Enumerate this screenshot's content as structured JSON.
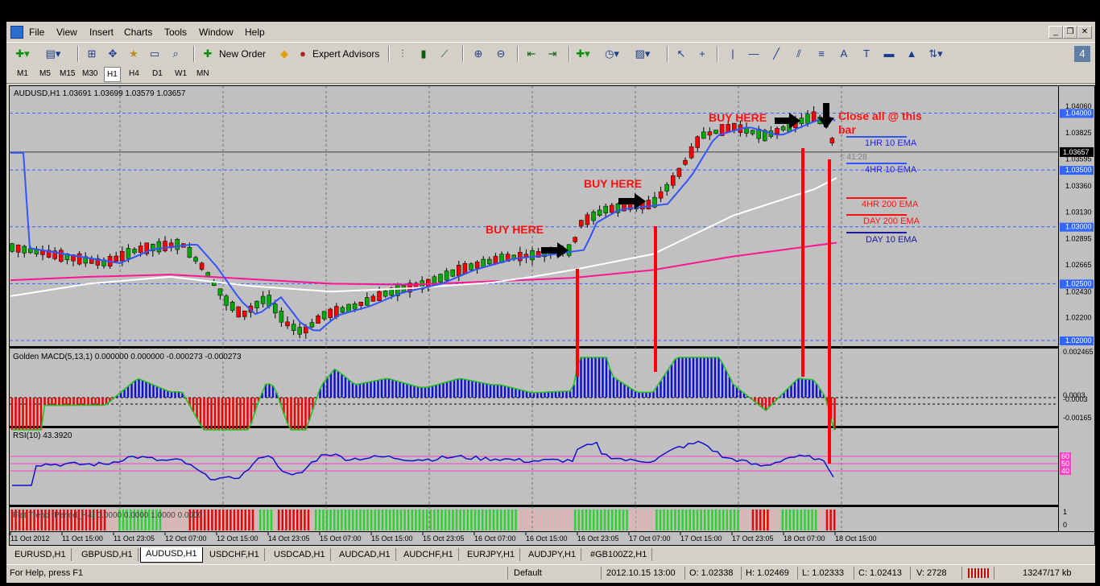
{
  "menu": [
    "File",
    "View",
    "Insert",
    "Charts",
    "Tools",
    "Window",
    "Help"
  ],
  "toolbar": {
    "new_order": "New Order",
    "expert_advisors": "Expert Advisors"
  },
  "timeframes": [
    "M1",
    "M5",
    "M15",
    "M30",
    "H1",
    "H4",
    "D1",
    "W1",
    "MN"
  ],
  "active_timeframe": "H1",
  "chart": {
    "header": "AUDUSD,H1  1.03691 1.03699 1.03579 1.03657",
    "price_labels": [
      "1.04060",
      "1.04000",
      "1.03825",
      "1.03595",
      "1.03500",
      "1.03360",
      "1.03130",
      "1.03000",
      "1.02895",
      "1.02665",
      "1.02500",
      "1.02430",
      "1.02200",
      "1.02000"
    ],
    "current_price": "1.03657",
    "countdown": "< 41:28",
    "annotations": {
      "buy1": "BUY HERE",
      "buy2": "BUY HERE",
      "buy3": "BUY HERE",
      "close": "Close all @ this",
      "close2": "bar"
    },
    "legend": [
      "1HR 10 EMA",
      "4HR 10 EMA",
      "4HR 200 EMA",
      "DAY 200 EMA",
      "DAY 10 EMA"
    ],
    "macd_header": "Golden MACD(5,13,1) 0.000000 0.000000 -0.000273 -0.000273",
    "macd_labels": [
      "0.002465",
      "0.0003",
      "-0.0003",
      "-0.00165"
    ],
    "rsi_header": "RSI(10) 43.3920",
    "rsi_labels": [
      "60",
      "50",
      "40"
    ],
    "flat_header": "Flat Trend (Period_H4) 0.0000 0.0000 1.0000 0.0000",
    "flat_labels": [
      "1",
      "0"
    ],
    "time_labels": [
      "11 Oct 2012",
      "11 Oct 15:00",
      "11 Oct 23:05",
      "12 Oct 07:00",
      "12 Oct 15:00",
      "14 Oct 23:05",
      "15 Oct 07:00",
      "15 Oct 15:00",
      "15 Oct 23:05",
      "16 Oct 07:00",
      "16 Oct 15:00",
      "16 Oct 23:05",
      "17 Oct 07:00",
      "17 Oct 15:00",
      "17 Oct 23:05",
      "18 Oct 07:00",
      "18 Oct 15:00"
    ]
  },
  "tabs": [
    "EURUSD,H1",
    "GBPUSD,H1",
    "AUDUSD,H1",
    "USDCHF,H1",
    "USDCAD,H1",
    "AUDCAD,H1",
    "AUDCHF,H1",
    "EURJPY,H1",
    "AUDJPY,H1",
    "#GB100Z2,H1"
  ],
  "active_tab": "AUDUSD,H1",
  "status": {
    "help": "For Help, press F1",
    "profile": "Default",
    "time": "2012.10.15 13:00",
    "open": "O: 1.02338",
    "high": "H: 1.02469",
    "low": "L: 1.02333",
    "close": "C: 1.02413",
    "volume": "V: 2728",
    "traffic": "13247/17 kb"
  },
  "colors": {
    "chart_bg": "#c0c0c0",
    "bull": "#00aa00",
    "bear": "#ff0000",
    "ema_blue": "#3355ff",
    "ema_white": "#ffffff",
    "ema_pink": "#ff1493"
  }
}
